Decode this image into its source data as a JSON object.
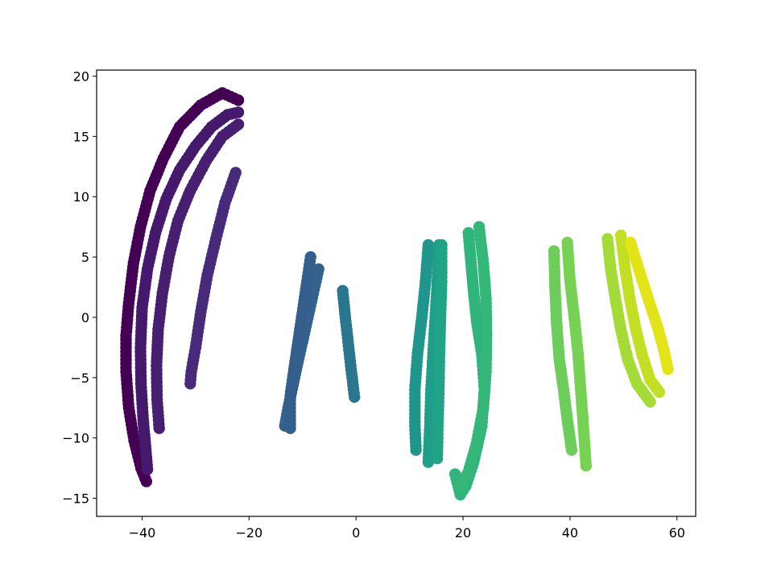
{
  "chart_data": {
    "type": "scatter",
    "title": "",
    "xlabel": "",
    "ylabel": "",
    "xlim": [
      -48.5,
      63.5
    ],
    "ylim": [
      -16.5,
      20.5
    ],
    "grid": false,
    "legend": "none",
    "colormap": "viridis",
    "x_ticks": [
      {
        "value": -40,
        "label": "−40"
      },
      {
        "value": -20,
        "label": "−20"
      },
      {
        "value": 0,
        "label": "0"
      },
      {
        "value": 20,
        "label": "20"
      },
      {
        "value": 40,
        "label": "40"
      },
      {
        "value": 60,
        "label": "60"
      }
    ],
    "y_ticks": [
      {
        "value": -15,
        "label": "−15"
      },
      {
        "value": -10,
        "label": "−10"
      },
      {
        "value": -5,
        "label": "−5"
      },
      {
        "value": 0,
        "label": "0"
      },
      {
        "value": 5,
        "label": "5"
      },
      {
        "value": 10,
        "label": "10"
      },
      {
        "value": 15,
        "label": "15"
      },
      {
        "value": 20,
        "label": "20"
      }
    ],
    "clusters": [
      {
        "color": "#440154",
        "points": [
          [
            -22,
            18
          ],
          [
            -25,
            18.6
          ],
          [
            -29,
            17.6
          ],
          [
            -33,
            15.8
          ],
          [
            -36,
            13.2
          ],
          [
            -38.5,
            10.5
          ],
          [
            -40.3,
            7.5
          ],
          [
            -41.6,
            4.5
          ],
          [
            -42.5,
            1.2
          ],
          [
            -43,
            -1.5
          ],
          [
            -43,
            -4.5
          ],
          [
            -42.5,
            -7.5
          ],
          [
            -41.5,
            -10.2
          ],
          [
            -40.2,
            -12.5
          ],
          [
            -39.2,
            -13.6
          ]
        ]
      },
      {
        "color": "#45196c",
        "points": [
          [
            -22,
            17
          ],
          [
            -24,
            16.8
          ],
          [
            -27,
            15.8
          ],
          [
            -30,
            14.2
          ],
          [
            -33,
            12.2
          ],
          [
            -35.5,
            9.8
          ],
          [
            -37.5,
            7
          ],
          [
            -39,
            4
          ],
          [
            -40,
            0.8
          ],
          [
            -40.3,
            -2.5
          ],
          [
            -40.2,
            -5.5
          ],
          [
            -39.8,
            -8.5
          ],
          [
            -39.3,
            -11
          ],
          [
            -39,
            -12.6
          ]
        ]
      },
      {
        "color": "#481f70",
        "points": [
          [
            -22,
            16
          ],
          [
            -25,
            15
          ],
          [
            -28,
            13
          ],
          [
            -31,
            10.5
          ],
          [
            -33.3,
            8
          ],
          [
            -35,
            5
          ],
          [
            -36.2,
            2
          ],
          [
            -37,
            -1
          ],
          [
            -37.3,
            -4
          ],
          [
            -37.2,
            -6.8
          ],
          [
            -36.8,
            -9.2
          ]
        ]
      },
      {
        "color": "#472a7a",
        "points": [
          [
            -22.5,
            12
          ],
          [
            -24.5,
            9.5
          ],
          [
            -26.2,
            6.5
          ],
          [
            -27.8,
            3.5
          ],
          [
            -29,
            0.5
          ],
          [
            -30,
            -2.5
          ],
          [
            -30.8,
            -4.5
          ],
          [
            -31,
            -5.5
          ]
        ]
      },
      {
        "color": "#33628d",
        "points": [
          [
            -7,
            4
          ],
          [
            -8.5,
            1
          ],
          [
            -10,
            -2
          ],
          [
            -11.5,
            -5
          ],
          [
            -12.7,
            -7.5
          ],
          [
            -13.3,
            -9
          ]
        ]
      },
      {
        "color": "#345f8d",
        "points": [
          [
            -8.5,
            5
          ],
          [
            -9.5,
            2
          ],
          [
            -10.5,
            -1
          ],
          [
            -11.5,
            -4
          ],
          [
            -12.3,
            -6.5
          ],
          [
            -12.3,
            -9.2
          ]
        ]
      },
      {
        "color": "#2a768e",
        "points": [
          [
            -2.5,
            2.2
          ],
          [
            -2,
            0
          ],
          [
            -1.5,
            -2
          ],
          [
            -1,
            -4
          ],
          [
            -0.3,
            -6.6
          ]
        ]
      },
      {
        "color": "#1f968b",
        "points": [
          [
            13.5,
            6
          ],
          [
            13,
            3
          ],
          [
            12.3,
            0
          ],
          [
            11.5,
            -3
          ],
          [
            11,
            -6
          ],
          [
            11,
            -9
          ],
          [
            11.2,
            -11
          ]
        ]
      },
      {
        "color": "#1f9e89",
        "points": [
          [
            15.5,
            6
          ],
          [
            15.2,
            3
          ],
          [
            14.8,
            0
          ],
          [
            14.4,
            -3
          ],
          [
            14,
            -6
          ],
          [
            13.8,
            -9
          ],
          [
            13.5,
            -12
          ]
        ]
      },
      {
        "color": "#21a386",
        "points": [
          [
            16,
            6
          ],
          [
            16,
            3
          ],
          [
            15.8,
            0
          ],
          [
            15.6,
            -3
          ],
          [
            15.5,
            -6
          ],
          [
            15.3,
            -9
          ],
          [
            15.2,
            -11.7
          ]
        ]
      },
      {
        "color": "#2fb47c",
        "points": [
          [
            21,
            7
          ],
          [
            21.5,
            4.5
          ],
          [
            22,
            2
          ],
          [
            22.6,
            -0.5
          ],
          [
            23.5,
            -3
          ],
          [
            24,
            -6
          ],
          [
            23.5,
            -9
          ],
          [
            22,
            -12
          ],
          [
            20.5,
            -14
          ],
          [
            19.5,
            -14.7
          ],
          [
            18.5,
            -13
          ]
        ]
      },
      {
        "color": "#35b779",
        "points": [
          [
            23,
            7.5
          ],
          [
            23.8,
            4.5
          ],
          [
            24.3,
            1.5
          ],
          [
            24.4,
            -1.5
          ],
          [
            24.3,
            -4.5
          ],
          [
            23.8,
            -7.5
          ],
          [
            22.5,
            -10.5
          ],
          [
            21,
            -12.8
          ],
          [
            19.5,
            -14
          ]
        ]
      },
      {
        "color": "#6ccd5a",
        "points": [
          [
            37,
            5.5
          ],
          [
            37.2,
            2.5
          ],
          [
            37.5,
            -0.5
          ],
          [
            38,
            -3.5
          ],
          [
            38.8,
            -6
          ],
          [
            39.5,
            -8.5
          ],
          [
            40.3,
            -11
          ]
        ]
      },
      {
        "color": "#77d153",
        "points": [
          [
            39.5,
            6.2
          ],
          [
            40,
            3
          ],
          [
            40.8,
            0
          ],
          [
            41.5,
            -3
          ],
          [
            42,
            -6
          ],
          [
            42.5,
            -9
          ],
          [
            43,
            -12.3
          ]
        ]
      },
      {
        "color": "#a5db36",
        "points": [
          [
            47,
            6.5
          ],
          [
            47.6,
            4
          ],
          [
            48.5,
            1.5
          ],
          [
            49.5,
            -1
          ],
          [
            50.8,
            -3.5
          ],
          [
            52.5,
            -5.5
          ],
          [
            55,
            -7
          ]
        ]
      },
      {
        "color": "#c2df23",
        "points": [
          [
            49.5,
            6.8
          ],
          [
            50.3,
            4
          ],
          [
            51.2,
            1.5
          ],
          [
            52.3,
            -1
          ],
          [
            53.6,
            -3.3
          ],
          [
            55,
            -5.2
          ],
          [
            56.7,
            -6.2
          ]
        ]
      },
      {
        "color": "#e2e418",
        "points": [
          [
            51.3,
            6.2
          ],
          [
            53,
            3.8
          ],
          [
            54.8,
            1.3
          ],
          [
            56.5,
            -1
          ],
          [
            57.7,
            -3
          ],
          [
            58.3,
            -4.3
          ]
        ]
      }
    ]
  }
}
